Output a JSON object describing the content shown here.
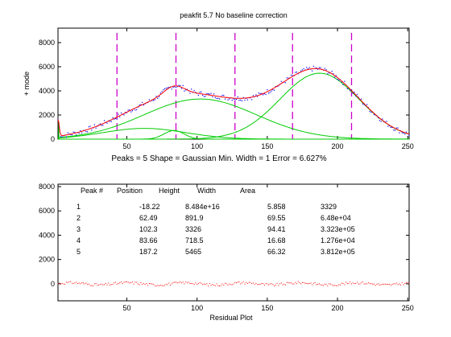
{
  "chart_data": [
    {
      "type": "line",
      "title": "peakfit 5.7  No baseline correction",
      "ylabel": "+ mode",
      "xlim": [
        1,
        251
      ],
      "ylim": [
        0,
        9200
      ],
      "xticks": [
        50,
        100,
        150,
        200,
        250
      ],
      "yticks": [
        0,
        2000,
        4000,
        6000,
        8000
      ],
      "caption": "Peaks = 5    Shape = Gaussian    Min. Width = 1    Error = 6.627%",
      "peak_markers": [
        43,
        85,
        127,
        168,
        210
      ],
      "peaks": [
        {
          "number": "1",
          "position": -18.22,
          "height": 8.484e+16,
          "width": 5.858,
          "area": 3329
        },
        {
          "number": "2",
          "position": 62.49,
          "height": 891.9,
          "width": 69.55,
          "area": 64800
        },
        {
          "number": "3",
          "position": 102.3,
          "height": 3326,
          "width": 94.41,
          "area": 332300
        },
        {
          "number": "4",
          "position": 83.66,
          "height": 718.5,
          "width": 16.68,
          "area": 12760
        },
        {
          "number": "5",
          "position": 187.2,
          "height": 5465,
          "width": 66.32,
          "area": 381200
        }
      ],
      "colors": {
        "data": "#0000ff",
        "fit": "#ff0000",
        "components": "#00cc00",
        "markers": "#cc00cc"
      }
    },
    {
      "type": "scatter",
      "xlabel": "Residual Plot",
      "xlim": [
        1,
        251
      ],
      "ylim": [
        -1400,
        8200
      ],
      "xticks": [
        50,
        100,
        150,
        200,
        250
      ],
      "yticks": [
        0,
        2000,
        4000,
        6000,
        8000
      ],
      "color": "#ff0000"
    }
  ],
  "table": {
    "headers": [
      "Peak #",
      "Position",
      "Height",
      "Width",
      "Area"
    ],
    "rows": [
      [
        "1",
        "-18.22",
        "8.484e+16",
        "5.858",
        "3329"
      ],
      [
        "2",
        "62.49",
        "891.9",
        "69.55",
        "6.48e+04"
      ],
      [
        "3",
        "102.3",
        "3326",
        "94.41",
        "3.323e+05"
      ],
      [
        "4",
        "83.66",
        "718.5",
        "16.68",
        "1.276e+04"
      ],
      [
        "5",
        "187.2",
        "5465",
        "66.32",
        "3.812e+05"
      ]
    ]
  }
}
